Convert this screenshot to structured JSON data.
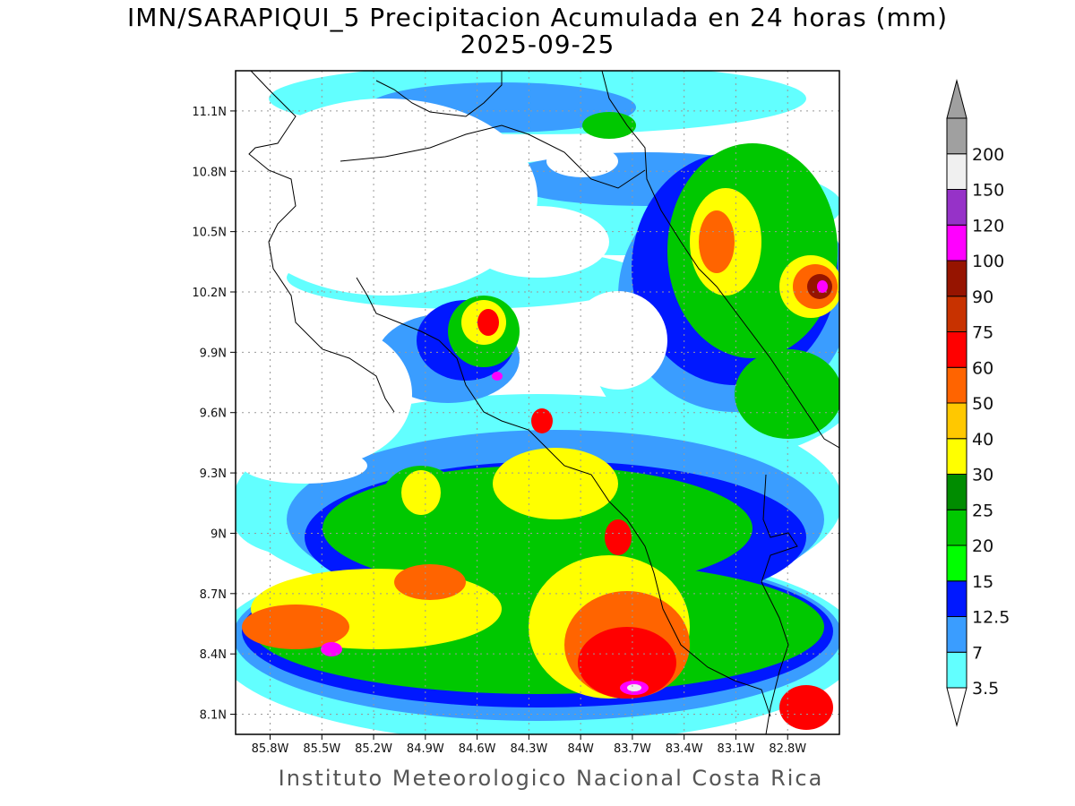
{
  "title": "IMN/SARAPIQUI_5 Precipitacion Acumulada en 24 horas (mm)",
  "date": "2025-09-25",
  "footer": "Instituto Meteorologico Nacional Costa Rica",
  "map": {
    "lon_range": [
      -86.0,
      -82.5
    ],
    "lat_range": [
      8.0,
      11.3
    ],
    "lat_ticks": [
      {
        "value": 11.1,
        "label": "11.1N"
      },
      {
        "value": 10.8,
        "label": "10.8N"
      },
      {
        "value": 10.5,
        "label": "10.5N"
      },
      {
        "value": 10.2,
        "label": "10.2N"
      },
      {
        "value": 9.9,
        "label": "9.9N"
      },
      {
        "value": 9.6,
        "label": "9.6N"
      },
      {
        "value": 9.3,
        "label": "9.3N"
      },
      {
        "value": 9.0,
        "label": "9N"
      },
      {
        "value": 8.7,
        "label": "8.7N"
      },
      {
        "value": 8.4,
        "label": "8.4N"
      },
      {
        "value": 8.1,
        "label": "8.1N"
      }
    ],
    "lon_ticks": [
      {
        "value": -85.8,
        "label": "85.8W"
      },
      {
        "value": -85.5,
        "label": "85.5W"
      },
      {
        "value": -85.2,
        "label": "85.2W"
      },
      {
        "value": -84.9,
        "label": "84.9W"
      },
      {
        "value": -84.6,
        "label": "84.6W"
      },
      {
        "value": -84.3,
        "label": "84.3W"
      },
      {
        "value": -84.0,
        "label": "84W"
      },
      {
        "value": -83.7,
        "label": "83.7W"
      },
      {
        "value": -83.4,
        "label": "83.4W"
      },
      {
        "value": -83.1,
        "label": "83.1W"
      },
      {
        "value": -82.8,
        "label": "82.8W"
      }
    ],
    "grid": true
  },
  "colorbar": {
    "levels": [
      "3.5",
      "7",
      "12.5",
      "15",
      "20",
      "25",
      "30",
      "40",
      "50",
      "60",
      "75",
      "90",
      "100",
      "120",
      "150",
      "200"
    ],
    "colors": [
      "#62ffff",
      "#3a9dff",
      "#0018ff",
      "#00ff00",
      "#00c800",
      "#008c00",
      "#ffff00",
      "#ffc800",
      "#ff6400",
      "#ff0000",
      "#c83200",
      "#961400",
      "#ff00ff",
      "#9632c8",
      "#f0f0f0",
      "#a0a0a0"
    ],
    "under_color": "#ffffff",
    "over_color": "#a0a0a0"
  }
}
